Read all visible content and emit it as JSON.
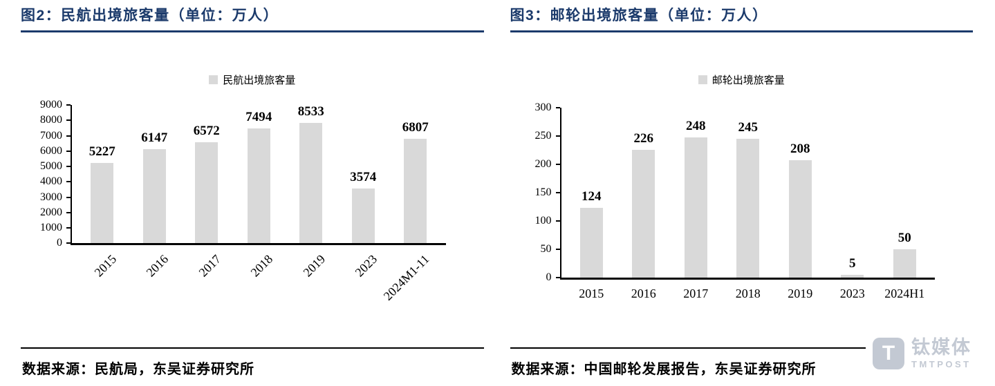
{
  "chart_data": [
    {
      "type": "bar",
      "title": "图2：民航出境旅客量（单位：万人）",
      "legend": [
        "民航出境旅客量"
      ],
      "categories": [
        "2015",
        "2016",
        "2017",
        "2018",
        "2019",
        "2023",
        "2024M1-11"
      ],
      "values": [
        5227,
        6147,
        6572,
        7494,
        8533,
        3574,
        6807
      ],
      "xlabel": "",
      "ylabel": "",
      "ylim": [
        0,
        9000
      ],
      "ytick_step": 1000,
      "grid": false,
      "legend_position": "top",
      "x_label_rotation": -45,
      "bar_color": "#d9d9d9",
      "source": "数据来源：民航局，东吴证券研究所"
    },
    {
      "type": "bar",
      "title": "图3：邮轮出境旅客量（单位：万人）",
      "legend": [
        "邮轮出境旅客量"
      ],
      "categories": [
        "2015",
        "2016",
        "2017",
        "2018",
        "2019",
        "2023",
        "2024H1"
      ],
      "values": [
        124,
        226,
        248,
        245,
        208,
        5,
        50
      ],
      "xlabel": "",
      "ylabel": "",
      "ylim": [
        0,
        300
      ],
      "ytick_step": 50,
      "grid": false,
      "legend_position": "top",
      "x_label_rotation": 0,
      "bar_color": "#d9d9d9",
      "source": "数据来源：中国邮轮发展报告，东吴证券研究所"
    }
  ],
  "watermark": {
    "icon_letter": "T",
    "cn": "钛媒体",
    "en": "TMTPOST"
  },
  "colors": {
    "title_navy": "#1b3a6b",
    "bar_gray": "#d9d9d9",
    "axis_black": "#000000",
    "watermark_gray": "#c3c9d3"
  }
}
